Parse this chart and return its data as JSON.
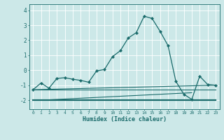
{
  "xlabel": "Humidex (Indice chaleur)",
  "bg_color": "#cce8e8",
  "grid_color": "#ffffff",
  "line_color": "#1a6b6b",
  "xlim": [
    -0.5,
    23.5
  ],
  "ylim": [
    -2.6,
    4.4
  ],
  "yticks": [
    -2,
    -1,
    0,
    1,
    2,
    3,
    4
  ],
  "xticks": [
    0,
    1,
    2,
    3,
    4,
    5,
    6,
    7,
    8,
    9,
    10,
    11,
    12,
    13,
    14,
    15,
    16,
    17,
    18,
    19,
    20,
    21,
    22,
    23
  ],
  "main_x": [
    0,
    1,
    2,
    3,
    4,
    5,
    6,
    7,
    8,
    9,
    10,
    11,
    12,
    13,
    14,
    15,
    16,
    17,
    18,
    19,
    20,
    21,
    22,
    23
  ],
  "main_y": [
    -1.3,
    -0.85,
    -1.2,
    -0.55,
    -0.5,
    -0.6,
    -0.68,
    -0.8,
    -0.05,
    0.05,
    0.9,
    1.3,
    2.15,
    2.5,
    3.6,
    3.45,
    2.6,
    1.65,
    -0.75,
    -1.6,
    -1.95,
    -0.4,
    -0.95,
    -1.0
  ],
  "line1_x": [
    0,
    23
  ],
  "line1_y": [
    -1.3,
    -1.0
  ],
  "line2_x": [
    0,
    23
  ],
  "line2_y": [
    -1.3,
    -1.3
  ],
  "line3_x": [
    0,
    23
  ],
  "line3_y": [
    -2.0,
    -2.0
  ],
  "line4_x": [
    1,
    20
  ],
  "line4_y": [
    -2.0,
    -1.5
  ]
}
